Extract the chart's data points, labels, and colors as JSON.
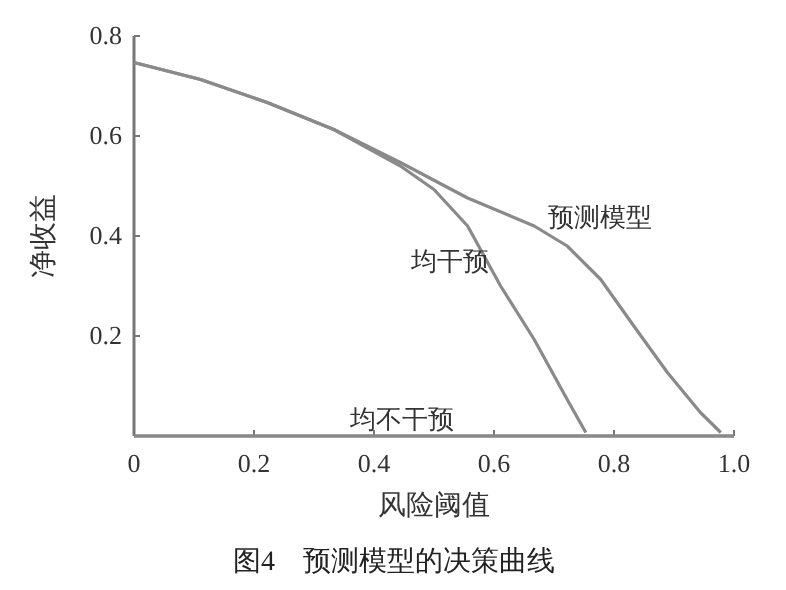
{
  "chart_data": {
    "type": "line",
    "title": "图4　预测模型的决策曲线",
    "xlabel": "风险阈值",
    "ylabel": "净收益",
    "xlim": [
      0,
      1.0
    ],
    "ylim": [
      0,
      0.8
    ],
    "xticks": [
      0,
      0.2,
      0.4,
      0.6,
      0.8,
      {
        "value": 1.0,
        "label": "1.0"
      }
    ],
    "yticks": [
      0.2,
      0.4,
      0.6,
      0.8
    ],
    "series": [
      {
        "name": "预测模型",
        "color": "#8a8a8a",
        "x": [
          0,
          0.111,
          0.222,
          0.333,
          0.444,
          0.556,
          0.667,
          0.722,
          0.778,
          0.833,
          0.889,
          0.944,
          0.978
        ],
        "values": [
          0.747,
          0.713,
          0.667,
          0.613,
          0.547,
          0.476,
          0.42,
          0.38,
          0.313,
          0.22,
          0.127,
          0.047,
          0.007
        ]
      },
      {
        "name": "均干预",
        "color": "#8a8a8a",
        "x": [
          0,
          0.111,
          0.222,
          0.333,
          0.444,
          0.5,
          0.556,
          0.611,
          0.667,
          0.722,
          0.753
        ],
        "values": [
          0.747,
          0.713,
          0.667,
          0.613,
          0.54,
          0.493,
          0.42,
          0.3,
          0.193,
          0.073,
          0.007
        ]
      },
      {
        "name": "均不干预",
        "color": "#8a8a8a",
        "x": [
          0,
          1.0
        ],
        "values": [
          0,
          0
        ]
      }
    ],
    "grid": false,
    "marker": "none",
    "line_style": "solid"
  }
}
